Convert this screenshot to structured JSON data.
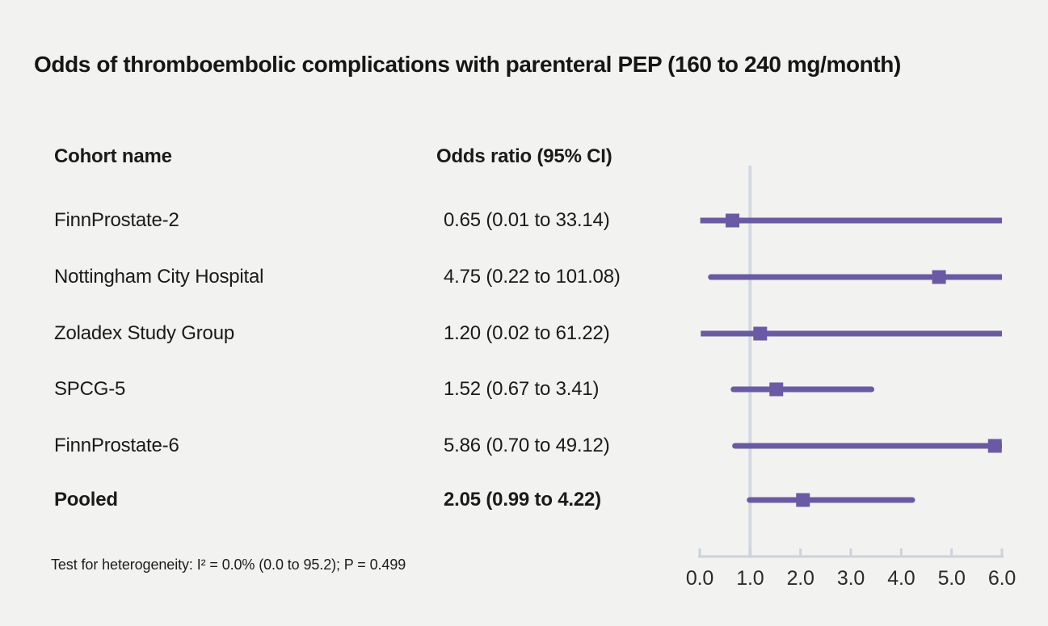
{
  "title": "Odds of thromboembolic complications with parenteral PEP (160 to 240 mg/month)",
  "columns": {
    "cohort": "Cohort name",
    "odds_ratio": "Odds ratio (95% CI)"
  },
  "footnote": "Test for heterogeneity: I² = 0.0% (0.0 to 95.2); P = 0.499",
  "colors": {
    "background": "#f2f2f0",
    "series_purple": "#6a5aa5",
    "axis_gray": "#ccd3dc",
    "reference_line_gray": "#d3d8e1",
    "text": "#1a1a1a"
  },
  "chart_data": {
    "type": "forest",
    "title": "Odds of thromboembolic complications with parenteral PEP (160 to 240 mg/month)",
    "rows": [
      {
        "label": "FinnProstate-2",
        "or_text": "0.65 (0.01 to 33.14)",
        "estimate": 0.65,
        "ci_low": 0.01,
        "ci_high": 33.14,
        "pooled": false
      },
      {
        "label": "Nottingham City Hospital",
        "or_text": "4.75 (0.22 to 101.08)",
        "estimate": 4.75,
        "ci_low": 0.22,
        "ci_high": 101.08,
        "pooled": false
      },
      {
        "label": "Zoladex Study Group",
        "or_text": "1.20 (0.02 to 61.22)",
        "estimate": 1.2,
        "ci_low": 0.02,
        "ci_high": 61.22,
        "pooled": false
      },
      {
        "label": "SPCG-5",
        "or_text": "1.52 (0.67 to 3.41)",
        "estimate": 1.52,
        "ci_low": 0.67,
        "ci_high": 3.41,
        "pooled": false
      },
      {
        "label": "FinnProstate-6",
        "or_text": "5.86 (0.70 to 49.12)",
        "estimate": 5.86,
        "ci_low": 0.7,
        "ci_high": 49.12,
        "pooled": false
      },
      {
        "label": "Pooled",
        "or_text": "2.05 (0.99 to 4.22)",
        "estimate": 2.05,
        "ci_low": 0.99,
        "ci_high": 4.22,
        "pooled": true
      }
    ],
    "x_axis": {
      "min": 0,
      "max": 6,
      "tick_values": [
        0,
        1,
        2,
        3,
        4,
        5,
        6
      ],
      "tick_labels": [
        "0.0",
        "1.0",
        "2.0",
        "3.0",
        "4.0",
        "5.0",
        "6.0"
      ],
      "reference_line": 1.0
    },
    "legend": "none",
    "grid": "off"
  }
}
